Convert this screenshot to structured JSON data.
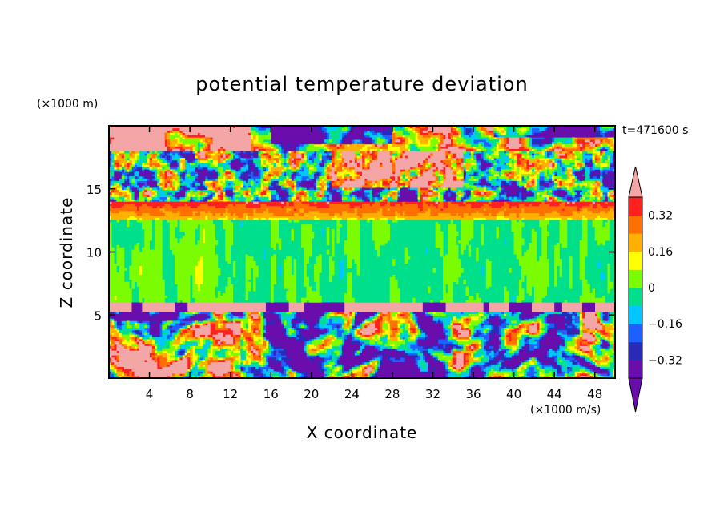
{
  "chart_data": {
    "type": "heatmap",
    "title": "potential temperature deviation",
    "xlabel": "X coordinate",
    "ylabel": "Z coordinate",
    "x_unit": "(×1000 m/s)",
    "y_unit": "(×1000 m)",
    "time_label": "t=471600 s",
    "xlim": [
      0,
      50
    ],
    "ylim": [
      0,
      20
    ],
    "x_ticks": [
      4,
      8,
      12,
      16,
      20,
      24,
      28,
      32,
      36,
      40,
      44,
      48
    ],
    "y_ticks": [
      5,
      10,
      15
    ],
    "colorbar": {
      "levels": [
        -0.4,
        -0.32,
        -0.24,
        -0.16,
        -0.08,
        0,
        0.08,
        0.16,
        0.24,
        0.32,
        0.4
      ],
      "tick_labels": [
        "0.32",
        "0.16",
        "0",
        "−0.16",
        "−0.32"
      ],
      "tick_values": [
        0.32,
        0.16,
        0,
        -0.16,
        -0.32
      ],
      "colors": [
        "#6a0dad",
        "#2a2ab8",
        "#1f5fff",
        "#00c8ff",
        "#00e08a",
        "#7cfc00",
        "#ffff00",
        "#ffb000",
        "#ff7000",
        "#ff2020"
      ],
      "over_color": "#f4a6a6",
      "under_color": "#6a0dad",
      "extend": "both"
    },
    "layers": [
      {
        "z_range": [
          18,
          20
        ],
        "dominant": "over 0.4 / below −0.4 (mixed)"
      },
      {
        "z_range": [
          14,
          18
        ],
        "dominant": "mixed extremes"
      },
      {
        "z_range": [
          12.5,
          14
        ],
        "dominant": "0.24 to 0.4"
      },
      {
        "z_range": [
          6,
          12.5
        ],
        "dominant": "−0.08 to 0.08"
      },
      {
        "z_range": [
          5.5,
          6
        ],
        "dominant": "over 0.4"
      },
      {
        "z_range": [
          0,
          5.5
        ],
        "dominant": "turbulent, full range"
      }
    ]
  }
}
